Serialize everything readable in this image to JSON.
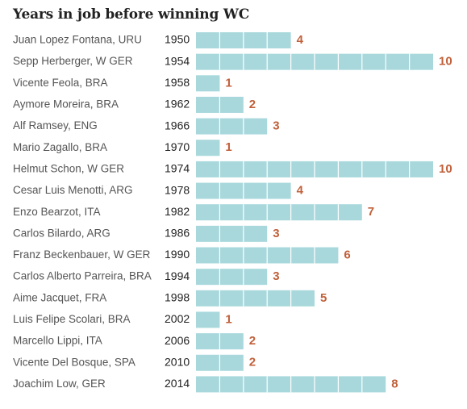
{
  "chart_data": {
    "type": "bar",
    "title": "Years in job before winning WC",
    "xlabel": "",
    "ylabel": "",
    "xlim": [
      0,
      10
    ],
    "grid": false,
    "legend": "none",
    "bar_color": "#a8d8dc",
    "segment_divider_color": "#ffffff",
    "value_label_color": "#c0603a",
    "rows": [
      {
        "coach": "Juan Lopez Fontana, URU",
        "year": "1950",
        "value": 4
      },
      {
        "coach": "Sepp Herberger, W GER",
        "year": "1954",
        "value": 10
      },
      {
        "coach": "Vicente Feola, BRA",
        "year": "1958",
        "value": 1
      },
      {
        "coach": "Aymore Moreira, BRA",
        "year": "1962",
        "value": 2
      },
      {
        "coach": "Alf Ramsey, ENG",
        "year": "1966",
        "value": 3
      },
      {
        "coach": "Mario Zagallo, BRA",
        "year": "1970",
        "value": 1
      },
      {
        "coach": "Helmut Schon, W GER",
        "year": "1974",
        "value": 10
      },
      {
        "coach": "Cesar Luis Menotti, ARG",
        "year": "1978",
        "value": 4
      },
      {
        "coach": "Enzo Bearzot, ITA",
        "year": "1982",
        "value": 7
      },
      {
        "coach": "Carlos Bilardo, ARG",
        "year": "1986",
        "value": 3
      },
      {
        "coach": "Franz Beckenbauer, W GER",
        "year": "1990",
        "value": 6
      },
      {
        "coach": "Carlos Alberto Parreira, BRA",
        "year": "1994",
        "value": 3
      },
      {
        "coach": "Aime Jacquet, FRA",
        "year": "1998",
        "value": 5
      },
      {
        "coach": "Luis Felipe Scolari, BRA",
        "year": "2002",
        "value": 1
      },
      {
        "coach": "Marcello Lippi, ITA",
        "year": "2006",
        "value": 2
      },
      {
        "coach": "Vicente Del Bosque, SPA",
        "year": "2010",
        "value": 2
      },
      {
        "coach": "Joachim Low, GER",
        "year": "2014",
        "value": 8
      }
    ]
  }
}
